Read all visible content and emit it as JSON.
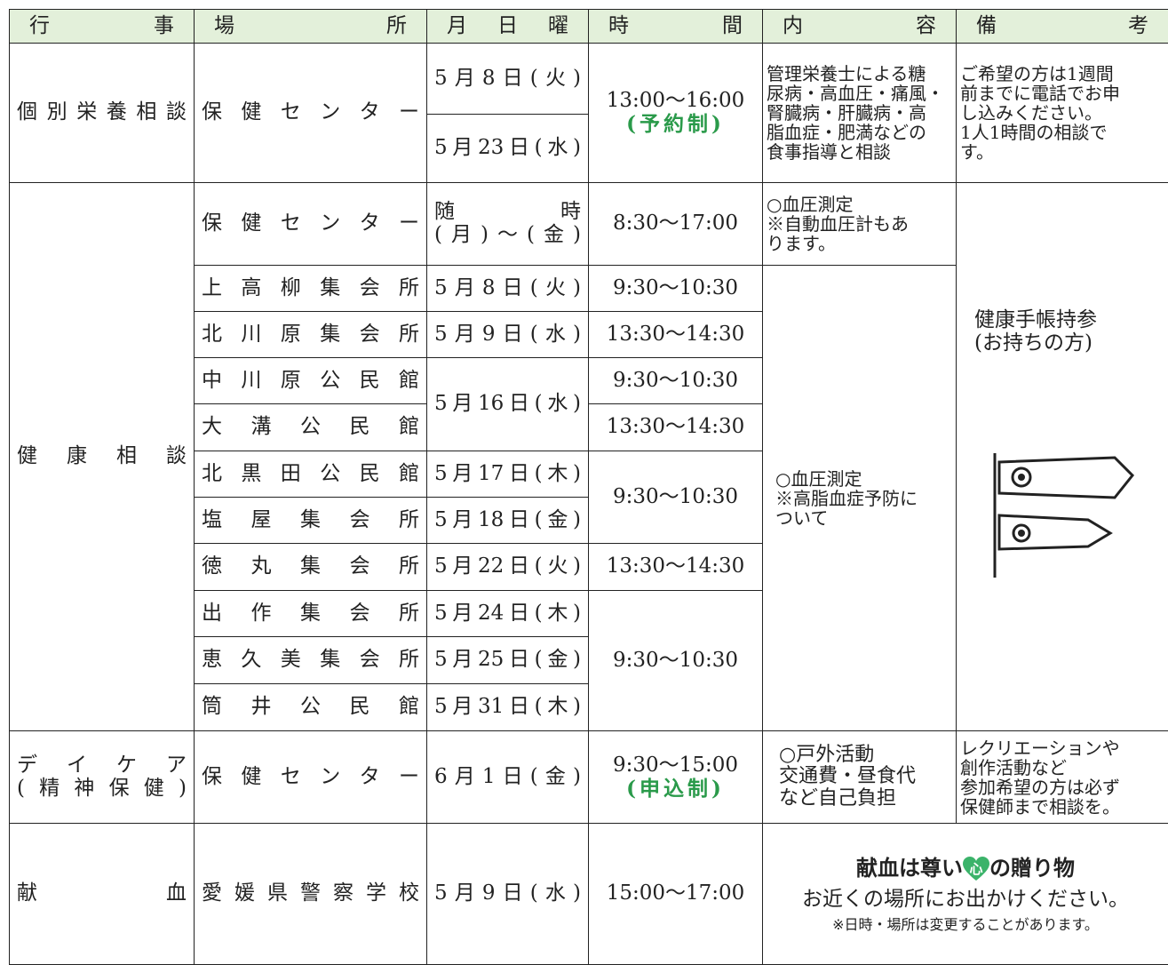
{
  "header": {
    "event": "行事",
    "place": "場所",
    "date": "月日曜",
    "time": "時間",
    "content": "内容",
    "remarks": "備考"
  },
  "nutrition": {
    "event": "個別栄養相談",
    "place": "保健センター",
    "dates": [
      "5月8日(火)",
      "5月23日(水)"
    ],
    "time": "13:00～16:00",
    "time_note": "(予約制)",
    "content": [
      "管理栄養士による糖",
      "尿病・高血圧・痛風・",
      "腎臓病・肝臓病・高",
      "脂血症・肥満などの",
      "食事指導と相談"
    ],
    "remarks": [
      "ご希望の方は1週間",
      "前までに電話でお申",
      "し込みください。",
      "1人1時間の相談で",
      "す。"
    ]
  },
  "health": {
    "event": "健康相談",
    "center": {
      "place": "保健センター",
      "date": [
        "随時",
        "(月)～(金)"
      ],
      "time": "8:30～17:00",
      "content": [
        "○血圧測定",
        "※自動血圧計もあ",
        "ります。"
      ]
    },
    "sites": [
      {
        "place": "上高柳集会所",
        "date": "5月8日(火)",
        "time": "9:30～10:30"
      },
      {
        "place": "北川原集会所",
        "date": "5月9日(水)",
        "time": "13:30～14:30"
      },
      {
        "place": "中川原公民館",
        "date": "5月16日(水)",
        "time": "9:30～10:30"
      },
      {
        "place": "大溝公民館",
        "time": "13:30～14:30"
      },
      {
        "place": "北黒田公民館",
        "date": "5月17日(木)",
        "time": "9:30～10:30"
      },
      {
        "place": "塩屋集会所",
        "date": "5月18日(金)"
      },
      {
        "place": "徳丸集会所",
        "date": "5月22日(火)",
        "time": "13:30～14:30"
      },
      {
        "place": "出作集会所",
        "date": "5月24日(木)",
        "time": "9:30～10:30"
      },
      {
        "place": "恵久美集会所",
        "date": "5月25日(金)"
      },
      {
        "place": "筒井公民館",
        "date": "5月31日(木)"
      }
    ],
    "content": [
      "○血圧測定",
      "※高脂血症予防に",
      "ついて"
    ],
    "remarks": [
      "健康手帳持参",
      "(お持ちの方)"
    ]
  },
  "daycare": {
    "event": [
      "デイケア",
      "(精神保健)"
    ],
    "place": "保健センター",
    "date": "6月1日(金)",
    "time": "9:30～15:00",
    "time_note": "(申込制)",
    "content": [
      "○戸外活動",
      "交通費・昼食代",
      "など自己負担"
    ],
    "remarks": [
      "レクリエーションや",
      "創作活動など",
      "参加希望の方は必ず",
      "保健師まで相談を。"
    ]
  },
  "blood": {
    "event": "献血",
    "place": "愛媛県警察学校",
    "date": "5月9日(水)",
    "time": "15:00～17:00",
    "message_before": "献血は尊い",
    "heart": "心",
    "message_after": "の贈り物",
    "note": "お近くの場所にお出かけください。",
    "caution": "※日時・場所は変更することがあります。"
  }
}
